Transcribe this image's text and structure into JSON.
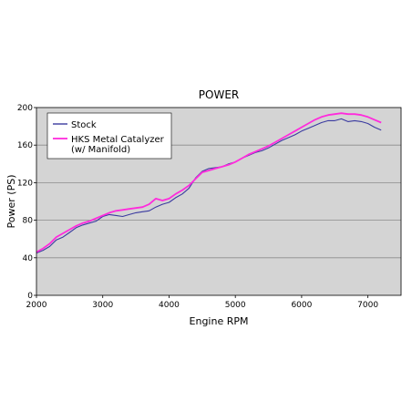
{
  "chart_data": {
    "type": "line",
    "title": "POWER",
    "xlabel": "Engine RPM",
    "ylabel": "Power (PS)",
    "xlim": [
      2000,
      7500
    ],
    "ylim": [
      0,
      200
    ],
    "xticks": [
      2000,
      3000,
      4000,
      5000,
      6000,
      7000
    ],
    "yticks": [
      0,
      40,
      80,
      120,
      160,
      200
    ],
    "grid": true,
    "legend_position": "top-left",
    "background_color": "#d4d4d4",
    "series": [
      {
        "name": "Stock",
        "color": "#3a3aa0",
        "x": [
          2000,
          2100,
          2200,
          2300,
          2400,
          2500,
          2600,
          2700,
          2800,
          2900,
          3000,
          3100,
          3200,
          3300,
          3400,
          3500,
          3600,
          3700,
          3800,
          3900,
          4000,
          4100,
          4200,
          4300,
          4400,
          4500,
          4600,
          4700,
          4800,
          4900,
          5000,
          5100,
          5200,
          5300,
          5400,
          5500,
          5600,
          5700,
          5800,
          5900,
          6000,
          6100,
          6200,
          6300,
          6400,
          6500,
          6600,
          6700,
          6800,
          6900,
          7000,
          7100,
          7200
        ],
        "values": [
          45,
          48,
          52,
          59,
          62,
          67,
          72,
          75,
          77,
          79,
          84,
          86,
          85,
          84,
          86,
          88,
          89,
          90,
          94,
          97,
          99,
          104,
          108,
          114,
          125,
          132,
          135,
          136,
          137,
          140,
          142,
          146,
          149,
          152,
          154,
          157,
          161,
          165,
          168,
          171,
          175,
          178,
          181,
          184,
          186,
          186,
          188,
          185,
          186,
          185,
          183,
          179,
          176
        ]
      },
      {
        "name": "HKS Metal Catalyzer (w/ Manifold)",
        "color": "#ff2bdc",
        "x": [
          2000,
          2100,
          2200,
          2300,
          2400,
          2500,
          2600,
          2700,
          2800,
          2900,
          3000,
          3100,
          3200,
          3300,
          3400,
          3500,
          3600,
          3700,
          3800,
          3900,
          4000,
          4100,
          4200,
          4300,
          4400,
          4500,
          4600,
          4700,
          4800,
          4900,
          5000,
          5100,
          5200,
          5300,
          5400,
          5500,
          5600,
          5700,
          5800,
          5900,
          6000,
          6100,
          6200,
          6300,
          6400,
          6500,
          6600,
          6700,
          6800,
          6900,
          7000,
          7100,
          7200
        ],
        "values": [
          46,
          50,
          55,
          62,
          66,
          70,
          74,
          77,
          79,
          82,
          85,
          88,
          90,
          91,
          92,
          93,
          94,
          97,
          103,
          101,
          103,
          108,
          112,
          117,
          124,
          131,
          133,
          135,
          137,
          139,
          142,
          146,
          150,
          153,
          156,
          159,
          163,
          167,
          171,
          175,
          179,
          183,
          187,
          190,
          192,
          193,
          194,
          193,
          193,
          192,
          190,
          187,
          184
        ]
      }
    ]
  }
}
